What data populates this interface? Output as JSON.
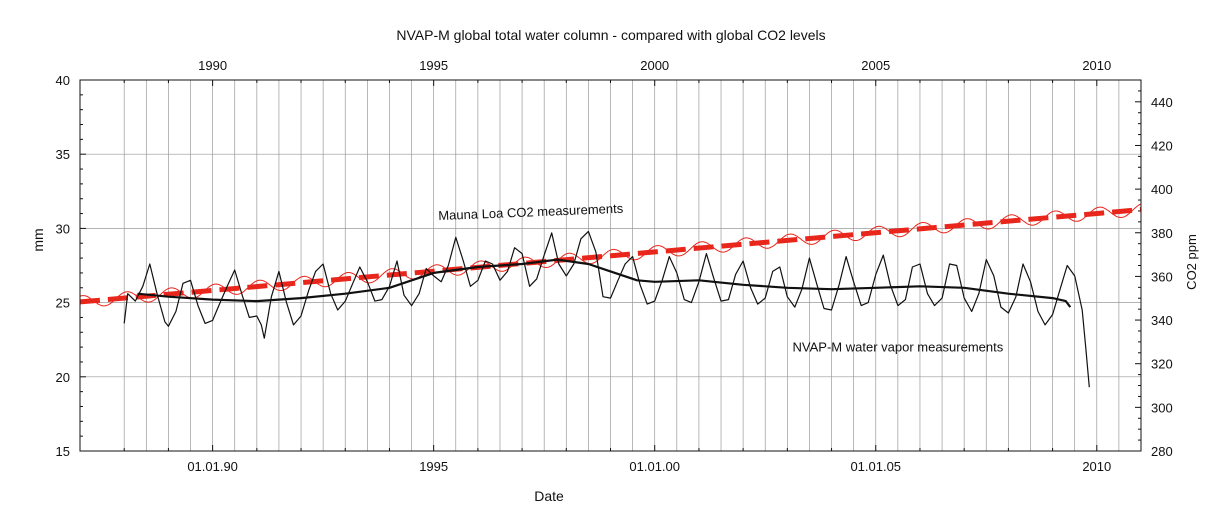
{
  "chart_data": {
    "type": "line",
    "title": "NVAP-M global total water column  - compared with global CO2 levels",
    "xlabel": "Date",
    "ylabel_left": "mm",
    "ylabel_right": "CO2 ppm",
    "xlim": [
      1987,
      2011
    ],
    "ylim_left": [
      15,
      40
    ],
    "ylim_right": [
      280,
      450
    ],
    "grid": true,
    "top_ticks": {
      "values": [
        1990,
        1995,
        2000,
        2005,
        2010
      ],
      "labels": [
        "1990",
        "1995",
        "2000",
        "2005",
        "2010"
      ]
    },
    "bottom_ticks": {
      "values": [
        1990,
        1995,
        2000,
        2005,
        2010
      ],
      "labels": [
        "01.01.90",
        "1995",
        "01.01.00",
        "01.01.05",
        "2010"
      ]
    },
    "left_ticks": [
      15,
      20,
      25,
      30,
      35,
      40
    ],
    "right_ticks": [
      280,
      300,
      320,
      340,
      360,
      380,
      400,
      420,
      440
    ],
    "annotations": [
      {
        "text": "Mauna Loa CO2 measurements",
        "color": "#e8261c",
        "x": 1997.2,
        "y": 387.5,
        "angle": -2.3
      },
      {
        "text": "NVAP-M water vapor measurements",
        "color": "#111111",
        "x": 2005.5,
        "y": 21.7,
        "angle": 0
      }
    ],
    "series": [
      {
        "key": "water_monthly",
        "axis": "left",
        "color": "#111111",
        "points": [
          [
            1988.0,
            23.6
          ],
          [
            1988.08,
            25.6
          ],
          [
            1988.25,
            25.1
          ],
          [
            1988.42,
            26.1
          ],
          [
            1988.58,
            27.6
          ],
          [
            1988.75,
            25.5
          ],
          [
            1988.92,
            23.7
          ],
          [
            1989.0,
            23.4
          ],
          [
            1989.17,
            24.4
          ],
          [
            1989.33,
            26.3
          ],
          [
            1989.5,
            26.5
          ],
          [
            1989.67,
            24.8
          ],
          [
            1989.83,
            23.6
          ],
          [
            1990.0,
            23.8
          ],
          [
            1990.17,
            25.0
          ],
          [
            1990.33,
            26.1
          ],
          [
            1990.5,
            27.2
          ],
          [
            1990.67,
            25.5
          ],
          [
            1990.83,
            24.0
          ],
          [
            1991.0,
            24.1
          ],
          [
            1991.1,
            23.5
          ],
          [
            1991.17,
            22.6
          ],
          [
            1991.33,
            25.4
          ],
          [
            1991.5,
            27.1
          ],
          [
            1991.67,
            25.0
          ],
          [
            1991.83,
            23.5
          ],
          [
            1992.0,
            24.1
          ],
          [
            1992.17,
            25.8
          ],
          [
            1992.33,
            27.1
          ],
          [
            1992.5,
            27.6
          ],
          [
            1992.67,
            25.6
          ],
          [
            1992.83,
            24.5
          ],
          [
            1993.0,
            25.1
          ],
          [
            1993.17,
            26.3
          ],
          [
            1993.33,
            27.4
          ],
          [
            1993.5,
            26.4
          ],
          [
            1993.67,
            25.1
          ],
          [
            1993.83,
            25.2
          ],
          [
            1994.0,
            26.1
          ],
          [
            1994.17,
            27.8
          ],
          [
            1994.33,
            25.5
          ],
          [
            1994.5,
            24.8
          ],
          [
            1994.67,
            25.6
          ],
          [
            1994.83,
            27.3
          ],
          [
            1995.0,
            26.8
          ],
          [
            1995.17,
            26.4
          ],
          [
            1995.33,
            27.5
          ],
          [
            1995.5,
            29.4
          ],
          [
            1995.67,
            27.8
          ],
          [
            1995.83,
            26.1
          ],
          [
            1996.0,
            26.5
          ],
          [
            1996.17,
            27.8
          ],
          [
            1996.33,
            27.6
          ],
          [
            1996.5,
            26.5
          ],
          [
            1996.67,
            27.1
          ],
          [
            1996.83,
            28.7
          ],
          [
            1997.0,
            28.3
          ],
          [
            1997.17,
            26.1
          ],
          [
            1997.33,
            26.6
          ],
          [
            1997.5,
            28.2
          ],
          [
            1997.67,
            29.7
          ],
          [
            1997.83,
            27.6
          ],
          [
            1998.0,
            26.8
          ],
          [
            1998.17,
            27.6
          ],
          [
            1998.33,
            29.3
          ],
          [
            1998.5,
            29.8
          ],
          [
            1998.67,
            28.4
          ],
          [
            1998.83,
            25.4
          ],
          [
            1999.0,
            25.3
          ],
          [
            1999.17,
            26.5
          ],
          [
            1999.33,
            27.6
          ],
          [
            1999.5,
            28.1
          ],
          [
            1999.67,
            26.2
          ],
          [
            1999.83,
            24.9
          ],
          [
            2000.0,
            25.1
          ],
          [
            2000.17,
            26.5
          ],
          [
            2000.33,
            28.1
          ],
          [
            2000.5,
            27.0
          ],
          [
            2000.67,
            25.2
          ],
          [
            2000.83,
            25.0
          ],
          [
            2001.0,
            26.4
          ],
          [
            2001.17,
            28.3
          ],
          [
            2001.33,
            26.7
          ],
          [
            2001.5,
            25.1
          ],
          [
            2001.67,
            25.2
          ],
          [
            2001.83,
            26.9
          ],
          [
            2002.0,
            27.8
          ],
          [
            2002.17,
            26.0
          ],
          [
            2002.33,
            24.9
          ],
          [
            2002.5,
            25.3
          ],
          [
            2002.67,
            27.1
          ],
          [
            2002.83,
            27.4
          ],
          [
            2003.0,
            25.4
          ],
          [
            2003.17,
            24.7
          ],
          [
            2003.33,
            25.9
          ],
          [
            2003.5,
            28.0
          ],
          [
            2003.67,
            26.2
          ],
          [
            2003.83,
            24.6
          ],
          [
            2004.0,
            24.5
          ],
          [
            2004.17,
            26.2
          ],
          [
            2004.33,
            28.1
          ],
          [
            2004.5,
            26.4
          ],
          [
            2004.67,
            24.8
          ],
          [
            2004.83,
            25.0
          ],
          [
            2005.0,
            26.9
          ],
          [
            2005.17,
            28.2
          ],
          [
            2005.33,
            26.2
          ],
          [
            2005.5,
            24.8
          ],
          [
            2005.67,
            25.2
          ],
          [
            2005.83,
            27.4
          ],
          [
            2006.0,
            27.6
          ],
          [
            2006.17,
            25.6
          ],
          [
            2006.33,
            24.8
          ],
          [
            2006.5,
            25.3
          ],
          [
            2006.67,
            27.6
          ],
          [
            2006.83,
            27.5
          ],
          [
            2007.0,
            25.3
          ],
          [
            2007.17,
            24.4
          ],
          [
            2007.33,
            25.6
          ],
          [
            2007.5,
            27.9
          ],
          [
            2007.67,
            26.8
          ],
          [
            2007.83,
            24.7
          ],
          [
            2008.0,
            24.3
          ],
          [
            2008.17,
            25.4
          ],
          [
            2008.33,
            27.6
          ],
          [
            2008.5,
            26.4
          ],
          [
            2008.67,
            24.4
          ],
          [
            2008.83,
            23.5
          ],
          [
            2009.0,
            24.2
          ],
          [
            2009.17,
            25.9
          ],
          [
            2009.33,
            27.5
          ],
          [
            2009.5,
            26.8
          ],
          [
            2009.67,
            24.5
          ],
          [
            2009.75,
            22.0
          ],
          [
            2009.83,
            19.3
          ]
        ]
      },
      {
        "key": "water_smoothed",
        "axis": "left",
        "color": "#111111",
        "points": [
          [
            1988.3,
            25.6
          ],
          [
            1989.0,
            25.4
          ],
          [
            1990.0,
            25.2
          ],
          [
            1991.0,
            25.1
          ],
          [
            1992.0,
            25.3
          ],
          [
            1993.0,
            25.6
          ],
          [
            1994.0,
            26.0
          ],
          [
            1995.0,
            27.0
          ],
          [
            1996.0,
            27.4
          ],
          [
            1997.0,
            27.6
          ],
          [
            1997.8,
            27.9
          ],
          [
            1998.5,
            27.6
          ],
          [
            1999.0,
            27.1
          ],
          [
            1999.6,
            26.5
          ],
          [
            2000.0,
            26.4
          ],
          [
            2001.0,
            26.5
          ],
          [
            2002.0,
            26.2
          ],
          [
            2003.0,
            26.0
          ],
          [
            2004.0,
            25.9
          ],
          [
            2005.0,
            26.0
          ],
          [
            2006.0,
            26.1
          ],
          [
            2007.0,
            26.0
          ],
          [
            2008.0,
            25.6
          ],
          [
            2009.0,
            25.3
          ],
          [
            2009.3,
            25.1
          ],
          [
            2009.4,
            24.7
          ]
        ]
      },
      {
        "key": "co2_trend",
        "axis": "right",
        "color": "#e8261c",
        "points": [
          [
            1987.0,
            348.3
          ],
          [
            2011.0,
            390.6
          ]
        ]
      },
      {
        "key": "co2_seasonal",
        "axis": "right",
        "color": "#e8261c",
        "amplitude": 2.8,
        "period": 1.0,
        "x_range": [
          1987.0,
          2011.0
        ]
      }
    ]
  }
}
